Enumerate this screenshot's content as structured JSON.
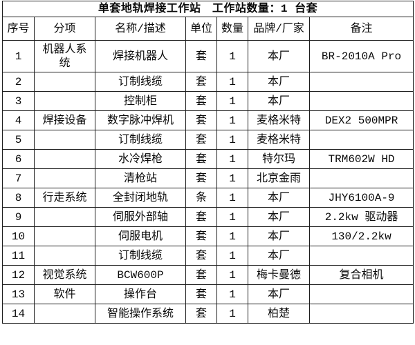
{
  "title": "单套地轨焊接工作站　工作站数量：1 台套",
  "colors": {
    "background": "#ffffff",
    "border": "#1c1c1c",
    "text": "#0a0a0a"
  },
  "table": {
    "headers": [
      "序号",
      "分项",
      "名称/描述",
      "单位",
      "数量",
      "品牌/厂家",
      "备注"
    ],
    "rows": [
      [
        "1",
        "机器人系统",
        "焊接机器人",
        "套",
        "1",
        "本厂",
        "BR-2010A Pro"
      ],
      [
        "2",
        "",
        "订制线缆",
        "套",
        "1",
        "本厂",
        ""
      ],
      [
        "3",
        "",
        "控制柜",
        "套",
        "1",
        "本厂",
        ""
      ],
      [
        "4",
        "焊接设备",
        "数字脉冲焊机",
        "套",
        "1",
        "麦格米特",
        "DEX2 500MPR"
      ],
      [
        "5",
        "",
        "订制线缆",
        "套",
        "1",
        "麦格米特",
        ""
      ],
      [
        "6",
        "",
        "水冷焊枪",
        "套",
        "1",
        "特尔玛",
        "TRM602W HD"
      ],
      [
        "7",
        "",
        "清枪站",
        "套",
        "1",
        "北京金雨",
        ""
      ],
      [
        "8",
        "行走系统",
        "全封闭地轨",
        "条",
        "1",
        "本厂",
        "JHY6100A-9"
      ],
      [
        "9",
        "",
        "伺服外部轴",
        "套",
        "1",
        "本厂",
        "2.2kw 驱动器"
      ],
      [
        "10",
        "",
        "伺服电机",
        "套",
        "1",
        "本厂",
        "130/2.2kw"
      ],
      [
        "11",
        "",
        "订制线缆",
        "套",
        "1",
        "本厂",
        ""
      ],
      [
        "12",
        "视觉系统",
        "BCW600P",
        "套",
        "1",
        "梅卡曼德",
        "复合相机"
      ],
      [
        "13",
        "软件",
        "操作台",
        "套",
        "1",
        "本厂",
        ""
      ],
      [
        "14",
        "",
        "智能操作系统",
        "套",
        "1",
        "柏楚",
        ""
      ]
    ]
  }
}
